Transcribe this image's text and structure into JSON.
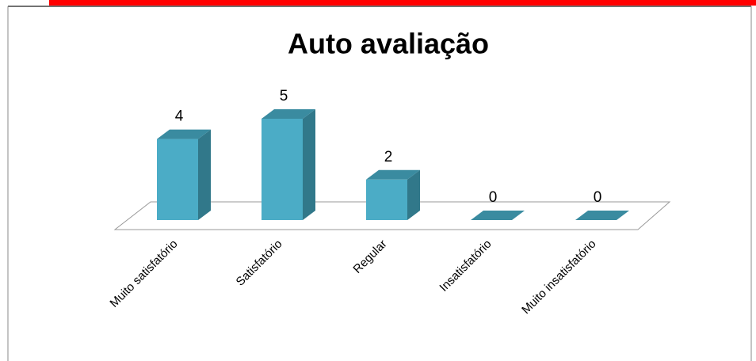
{
  "chart_data": {
    "type": "bar3d",
    "title": "Auto avaliação",
    "categories": [
      "Muito satisfatório",
      "Satisfatório",
      "Regular",
      "Insatisfatório",
      "Muito insatisfatório"
    ],
    "values": [
      4,
      5,
      2,
      0,
      0
    ],
    "color": "#4bacc6"
  }
}
